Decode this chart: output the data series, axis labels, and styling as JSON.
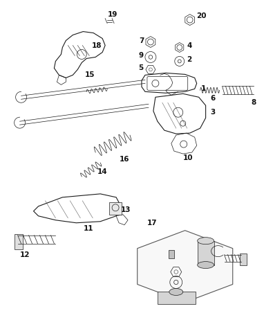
{
  "bg_color": "#ffffff",
  "line_color": "#1a1a1a",
  "figsize": [
    3.82,
    4.75
  ],
  "dpi": 100,
  "xlim": [
    0,
    382
  ],
  "ylim": [
    0,
    475
  ]
}
